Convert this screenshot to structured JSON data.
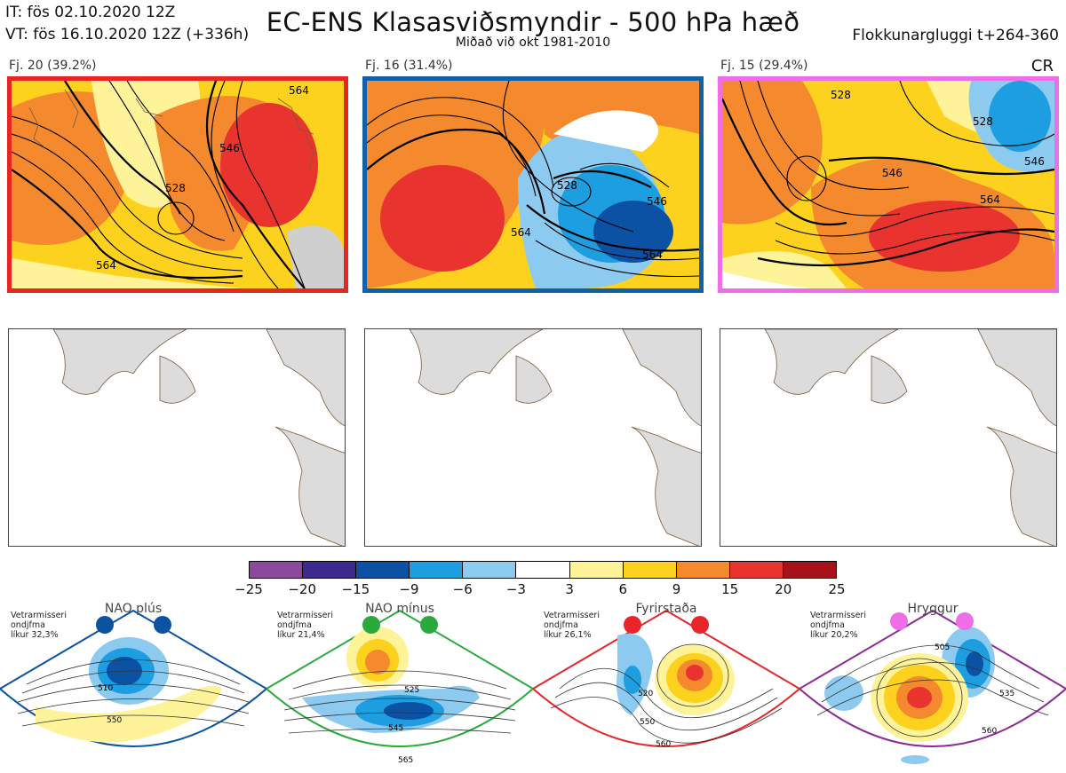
{
  "header": {
    "it_line": "IT: fös 02.10.2020 12Z",
    "vt_line": "VT: fös 16.10.2020 12Z  (+336h)",
    "title": "EC-ENS Klasasviðsmyndir - 500 hPa hæð",
    "subtitle": "Miðað við okt 1981-2010",
    "window": "Flokkunargluggi t+264-360",
    "regime_code": "CR"
  },
  "clusters": [
    {
      "label": "Fj. 20 (39.2%)",
      "border_color": "#e8251f",
      "contours": [
        "528",
        "546",
        "564",
        "564"
      ]
    },
    {
      "label": "Fj. 16 (31.4%)",
      "border_color": "#1060a8",
      "contours": [
        "528",
        "546",
        "564",
        "564"
      ]
    },
    {
      "label": "Fj. 15 (29.4%)",
      "border_color": "#ee6ee8",
      "contours": [
        "528",
        "528",
        "546",
        "546",
        "564"
      ]
    }
  ],
  "colorbar": {
    "ticks": [
      "−25",
      "−20",
      "−15",
      "−9",
      "−6",
      "−3",
      "3",
      "6",
      "9",
      "15",
      "20",
      "25"
    ],
    "colors": [
      "#8c4a9c",
      "#3d2a8e",
      "#0c52a4",
      "#1d9ee0",
      "#8dcaf0",
      "#ffffff",
      "#fff399",
      "#fcd21e",
      "#f4892e",
      "#e8332e",
      "#a8101a"
    ]
  },
  "regimes": [
    {
      "name": "NAO plús",
      "prob_line1": "Vetrarmisseri",
      "prob_line2": "ondjfma",
      "prob_line3": "líkur 32,3%",
      "color": "#0b52a0",
      "contours": [
        "510",
        "550"
      ]
    },
    {
      "name": "NAO mínus",
      "prob_line1": "Vetrarmisseri",
      "prob_line2": "ondjfma",
      "prob_line3": "líkur 21,4%",
      "color": "#2aaa3c",
      "contours": [
        "525",
        "545",
        "565"
      ]
    },
    {
      "name": "Fyrirstaða",
      "prob_line1": "Vetrarmisseri",
      "prob_line2": "ondjfma",
      "prob_line3": "líkur 26,1%",
      "color": "#e8252a",
      "contours": [
        "520",
        "550",
        "560"
      ]
    },
    {
      "name": "Hryggur",
      "prob_line1": "Vetrarmisseri",
      "prob_line2": "ondjfma",
      "prob_line3": "líkur 20,2%",
      "color": "#8b2a96",
      "contours": [
        "505",
        "535",
        "560"
      ]
    }
  ]
}
